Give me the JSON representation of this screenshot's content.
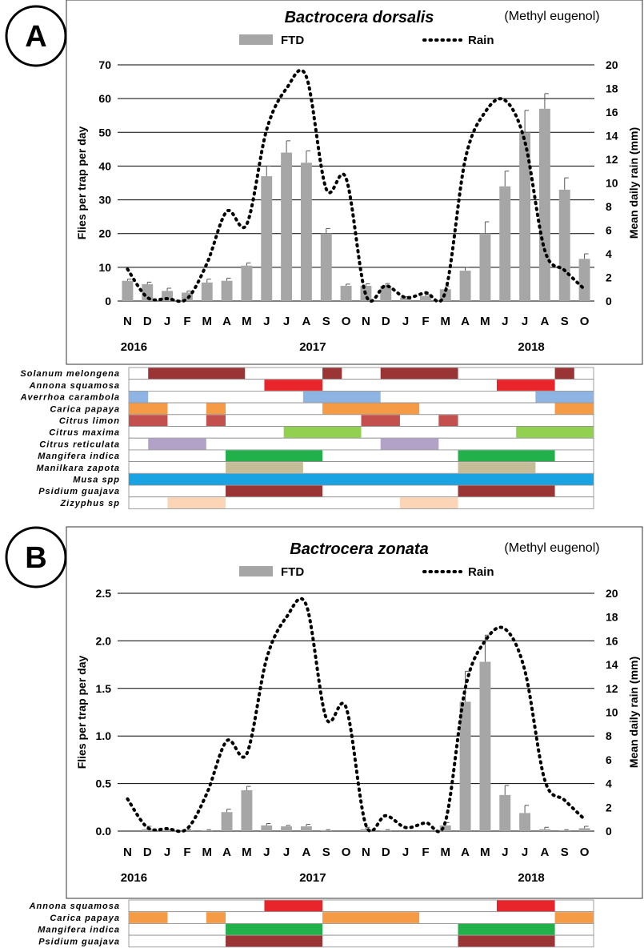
{
  "colors": {
    "bar": "#a6a6a6",
    "rain_line": "#000000",
    "darkred": "#9b3535",
    "red": "#e8252b",
    "blue": "#8eb4e3",
    "orange": "#f59a45",
    "rose": "#c4504d",
    "lightgreen": "#92d050",
    "lavender": "#b3a2c7",
    "green": "#22b04b",
    "tan": "#c4bd97",
    "cyan": "#1aa3e3",
    "peach": "#fbd5b5"
  },
  "chart_data": [
    {
      "type": "bar",
      "panel": "A",
      "title": "Bactrocera dorsalis",
      "subtitle": "(Methyl eugenol)",
      "legend": [
        "FTD",
        "Rain"
      ],
      "legend_position": "top",
      "categories": [
        "N",
        "D",
        "J",
        "F",
        "M",
        "A",
        "M",
        "J",
        "J",
        "A",
        "S",
        "O",
        "N",
        "D",
        "J",
        "F",
        "M",
        "A",
        "M",
        "J",
        "J",
        "A",
        "S",
        "O"
      ],
      "years": [
        {
          "label": "2016",
          "at_index": 0
        },
        {
          "label": "2017",
          "at_index": 9
        },
        {
          "label": "2018",
          "at_index": 20
        }
      ],
      "ylabel": "Flies per trap per day",
      "y2label": "Mean daily rain (mm)",
      "ylim": [
        0,
        70
      ],
      "y2lim": [
        0,
        20
      ],
      "yticks": [
        0,
        10,
        20,
        30,
        40,
        50,
        60,
        70
      ],
      "y2ticks": [
        0,
        2,
        4,
        6,
        8,
        10,
        12,
        14,
        16,
        18,
        20
      ],
      "grid": true,
      "series": [
        {
          "name": "FTD",
          "kind": "bar",
          "values": [
            6,
            5,
            3,
            2.5,
            5.5,
            6,
            10.5,
            37,
            44,
            41,
            20,
            4.5,
            4.5,
            4.5,
            1,
            1.5,
            3.5,
            9,
            20,
            34,
            50,
            57,
            33,
            12.5
          ],
          "errors": [
            0.5,
            0.6,
            0.8,
            0.5,
            1,
            0.8,
            0.8,
            3,
            3.5,
            3.5,
            1.5,
            0.5,
            0.6,
            0.7,
            0.3,
            0.4,
            0.8,
            1,
            3.5,
            4.5,
            6.5,
            4.5,
            3.5,
            1.5
          ]
        },
        {
          "name": "Rain",
          "kind": "line",
          "axis": "right",
          "values": [
            2.7,
            0.3,
            0.2,
            0.2,
            3.2,
            7.6,
            6.5,
            14.5,
            18,
            19,
            9.5,
            10.4,
            0.5,
            1.3,
            0.3,
            0.7,
            0.8,
            12,
            16,
            17,
            13.5,
            4.3,
            2.6,
            1
          ]
        }
      ],
      "hosts": [
        {
          "name": "Solanum melongena",
          "spans": [
            [
              1,
              5,
              "darkred"
            ],
            [
              10,
              10,
              "darkred"
            ],
            [
              13,
              16,
              "darkred"
            ],
            [
              22,
              22,
              "darkred"
            ]
          ]
        },
        {
          "name": "Annona squamosa",
          "spans": [
            [
              7,
              9,
              "red"
            ],
            [
              19,
              21,
              "red"
            ]
          ]
        },
        {
          "name": "Averrhoa carambola",
          "spans": [
            [
              0,
              0,
              "blue"
            ],
            [
              9,
              12,
              "blue"
            ],
            [
              21,
              23,
              "blue"
            ]
          ]
        },
        {
          "name": "Carica papaya",
          "spans": [
            [
              0,
              1,
              "orange"
            ],
            [
              4,
              4,
              "orange"
            ],
            [
              10,
              14,
              "orange"
            ],
            [
              22,
              23,
              "orange"
            ]
          ]
        },
        {
          "name": "Citrus limon",
          "spans": [
            [
              0,
              1,
              "rose"
            ],
            [
              4,
              4,
              "rose"
            ],
            [
              12,
              13,
              "rose"
            ],
            [
              16,
              16,
              "rose"
            ]
          ]
        },
        {
          "name": "Citrus maxima",
          "spans": [
            [
              8,
              11,
              "lightgreen"
            ],
            [
              20,
              23,
              "lightgreen"
            ]
          ]
        },
        {
          "name": "Citrus reticulata",
          "spans": [
            [
              1,
              3,
              "lavender"
            ],
            [
              13,
              15,
              "lavender"
            ]
          ]
        },
        {
          "name": "Mangifera indica",
          "spans": [
            [
              5,
              9,
              "green"
            ],
            [
              17,
              21,
              "green"
            ]
          ]
        },
        {
          "name": "Manilkara zapota",
          "spans": [
            [
              5,
              8,
              "tan"
            ],
            [
              17,
              20,
              "tan"
            ]
          ]
        },
        {
          "name": "Musa spp",
          "spans": [
            [
              0,
              23,
              "cyan"
            ]
          ]
        },
        {
          "name": "Psidium guajava",
          "spans": [
            [
              5,
              9,
              "darkred"
            ],
            [
              17,
              21,
              "darkred"
            ]
          ]
        },
        {
          "name": "Zizyphus sp",
          "spans": [
            [
              2,
              4,
              "peach"
            ],
            [
              14,
              16,
              "peach"
            ]
          ]
        }
      ]
    },
    {
      "type": "bar",
      "panel": "B",
      "title": "Bactrocera zonata",
      "subtitle": "(Methyl eugenol)",
      "legend": [
        "FTD",
        "Rain"
      ],
      "legend_position": "top",
      "categories": [
        "N",
        "D",
        "J",
        "F",
        "M",
        "A",
        "M",
        "J",
        "J",
        "A",
        "S",
        "O",
        "N",
        "D",
        "J",
        "F",
        "M",
        "A",
        "M",
        "J",
        "J",
        "A",
        "S",
        "O"
      ],
      "years": [
        {
          "label": "2016",
          "at_index": 0
        },
        {
          "label": "2017",
          "at_index": 9
        },
        {
          "label": "2018",
          "at_index": 20
        }
      ],
      "ylabel": "Flies per trap per day",
      "y2label": "Mean daily rain (mm)",
      "ylim": [
        0,
        2.5
      ],
      "y2lim": [
        0,
        20
      ],
      "yticks": [
        "0.0",
        "0.5",
        "1.0",
        "1.5",
        "2.0",
        "2.5"
      ],
      "y2ticks": [
        0,
        2,
        4,
        6,
        8,
        10,
        12,
        14,
        16,
        18,
        20
      ],
      "grid": true,
      "series": [
        {
          "name": "FTD",
          "kind": "bar",
          "values": [
            0,
            0.02,
            0.01,
            0.01,
            0.01,
            0.2,
            0.43,
            0.06,
            0.05,
            0.05,
            0.01,
            0,
            0.02,
            0.01,
            0,
            0,
            0.06,
            1.36,
            1.78,
            0.38,
            0.19,
            0.02,
            0.01,
            0.03
          ],
          "errors": [
            0,
            0.03,
            0.005,
            0.005,
            0.005,
            0.03,
            0.04,
            0.02,
            0.01,
            0.02,
            0.005,
            0,
            0.02,
            0.005,
            0,
            0,
            0.03,
            0.32,
            0.28,
            0.1,
            0.08,
            0.02,
            0.005,
            0.02
          ]
        },
        {
          "name": "Rain",
          "kind": "line",
          "axis": "right",
          "values": [
            2.7,
            0.3,
            0.2,
            0.2,
            3.2,
            7.6,
            6.5,
            14.5,
            18,
            19,
            9.5,
            10.4,
            0.5,
            1.3,
            0.3,
            0.7,
            0.8,
            12,
            16,
            17,
            13.5,
            4.3,
            2.6,
            1
          ]
        }
      ],
      "hosts": [
        {
          "name": "Annona squamosa",
          "spans": [
            [
              7,
              9,
              "red"
            ],
            [
              19,
              21,
              "red"
            ]
          ]
        },
        {
          "name": "Carica papaya",
          "spans": [
            [
              0,
              1,
              "orange"
            ],
            [
              4,
              4,
              "orange"
            ],
            [
              10,
              14,
              "orange"
            ],
            [
              22,
              23,
              "orange"
            ]
          ]
        },
        {
          "name": "Mangifera indica",
          "spans": [
            [
              5,
              9,
              "green"
            ],
            [
              17,
              21,
              "green"
            ]
          ]
        },
        {
          "name": "Psidium guajava",
          "spans": [
            [
              5,
              9,
              "darkred"
            ],
            [
              17,
              21,
              "darkred"
            ]
          ]
        }
      ]
    }
  ]
}
